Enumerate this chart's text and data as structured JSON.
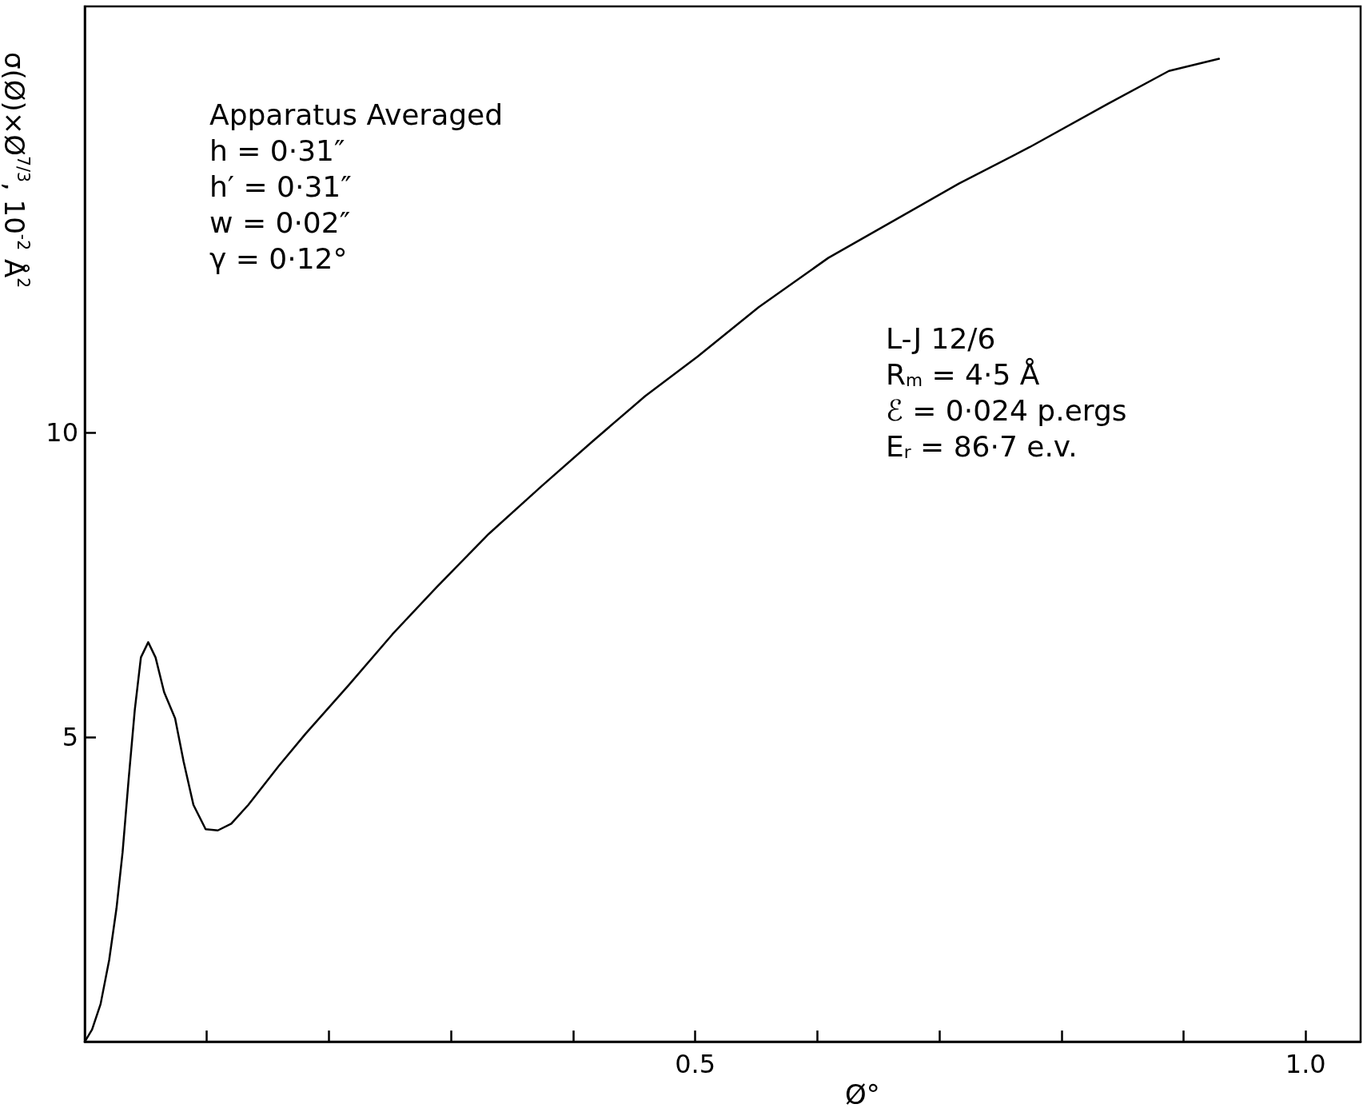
{
  "chart_data": {
    "type": "line",
    "xlabel": "Ø°",
    "ylabel": "σ(Ø)×Ø$^{7/3}$, 10$^{-2}$ Å$^{2}$",
    "x": [
      0,
      0.006,
      0.013,
      0.02,
      0.026,
      0.031,
      0.036,
      0.041,
      0.046,
      0.052,
      0.058,
      0.065,
      0.074,
      0.081,
      0.089,
      0.099,
      0.109,
      0.12,
      0.134,
      0.159,
      0.181,
      0.216,
      0.252,
      0.288,
      0.331,
      0.374,
      0.416,
      0.459,
      0.502,
      0.552,
      0.609,
      0.666,
      0.716,
      0.774,
      0.838,
      0.888,
      0.929
    ],
    "series": [
      {
        "color": "#000000",
        "values": [
          0,
          0.2,
          0.62,
          1.34,
          2.19,
          3.11,
          4.32,
          5.45,
          6.31,
          6.56,
          6.31,
          5.74,
          5.31,
          4.6,
          3.89,
          3.49,
          3.47,
          3.58,
          3.89,
          4.53,
          5.06,
          5.85,
          6.69,
          7.46,
          8.34,
          9.12,
          9.86,
          10.6,
          11.25,
          12.06,
          12.87,
          13.52,
          14.09,
          14.69,
          15.4,
          15.94,
          16.14
        ]
      }
    ],
    "xlim": [
      0,
      1.045
    ],
    "ylim": [
      0,
      17
    ],
    "xticks": [
      {
        "value": 0.1,
        "label": null
      },
      {
        "value": 0.2,
        "label": null
      },
      {
        "value": 0.3,
        "label": null
      },
      {
        "value": 0.4,
        "label": null
      },
      {
        "value": 0.5,
        "label": "0.5"
      },
      {
        "value": 0.6,
        "label": null
      },
      {
        "value": 0.7,
        "label": null
      },
      {
        "value": 0.8,
        "label": null
      },
      {
        "value": 0.9,
        "label": null
      },
      {
        "value": 1.0,
        "label": "1.0"
      }
    ],
    "yticks": [
      5,
      10
    ],
    "grid": false,
    "marker": "none",
    "line_style": "solid",
    "annotations": [
      "Apparatus Averaged\nh = 0·31″\nh′ = 0·31″\nw = 0·02″\nγ = 0·12°",
      "L-J 12/6\nR$_{m}$ = 4·5 Å\nℰ = 0·024 p.ergs\nE$_{r}$ = 86·7 e.v."
    ]
  }
}
